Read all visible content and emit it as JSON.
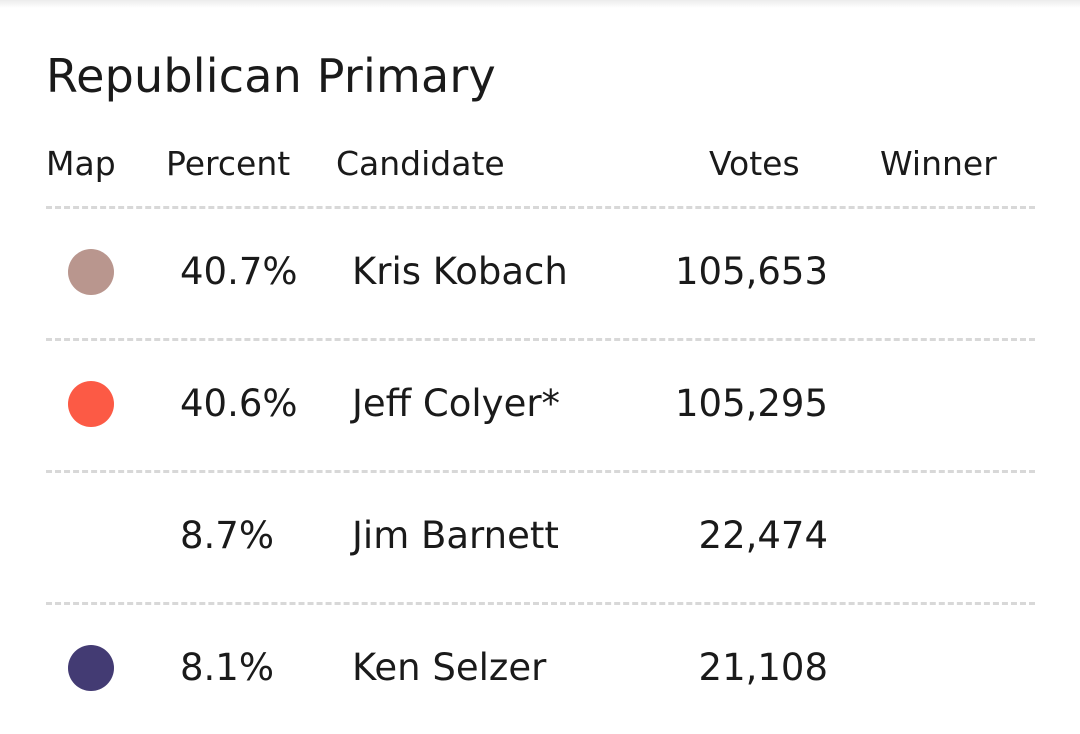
{
  "title": "Republican Primary",
  "headers": {
    "map": "Map",
    "percent": "Percent",
    "candidate": "Candidate",
    "votes": "Votes",
    "winner": "Winner"
  },
  "rows": [
    {
      "color": "#b9968e",
      "percent": "40.7%",
      "candidate": "Kris Kobach",
      "votes": "105,653",
      "winner": ""
    },
    {
      "color": "#fc5a45",
      "percent": "40.6%",
      "candidate": "Jeff Colyer*",
      "votes": "105,295",
      "winner": ""
    },
    {
      "color": "",
      "percent": "8.7%",
      "candidate": "Jim Barnett",
      "votes": "22,474",
      "winner": ""
    },
    {
      "color": "#433b73",
      "percent": "8.1%",
      "candidate": "Ken Selzer",
      "votes": "21,108",
      "winner": ""
    }
  ]
}
